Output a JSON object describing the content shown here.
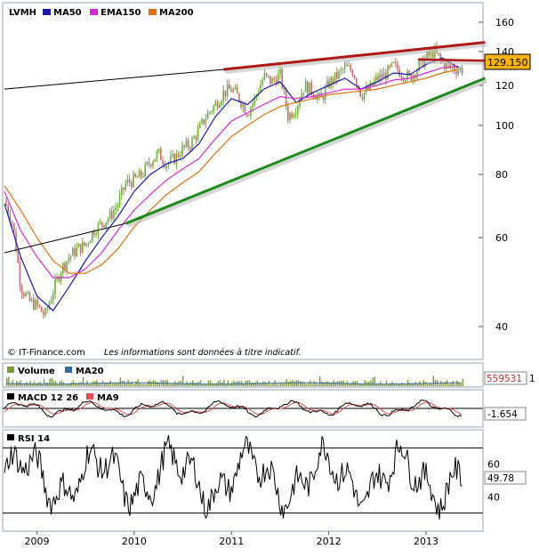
{
  "colors": {
    "frame": "#9aa6b8",
    "up": "#6fae3f",
    "down": "#c0706a",
    "ma50": "#1a1ab0",
    "ema150": "#d62ad0",
    "ma200": "#e07010",
    "trend_top": "#b01818",
    "trend_bottom": "#1e8a1e",
    "resistance": "#b01818",
    "price_badge": "#f4b400",
    "volume_bar": "#7a9a3a",
    "volume_ma": "#3a6aa0",
    "macd": "#000000",
    "macd_signal": "#e05050",
    "rsi": "#000000"
  },
  "legend": {
    "symbol": "LVMH",
    "ma50": "MA50",
    "ema150": "EMA150",
    "ma200": "MA200"
  },
  "credit": "© IT-Finance.com",
  "disclaimer": "Les informations sont données à titre indicatif.",
  "chart_data": [
    {
      "type": "line",
      "panel": "price",
      "scale": "log",
      "x_range": [
        "2008-09",
        "2013-05"
      ],
      "ylim": [
        35,
        170
      ],
      "yticks": [
        40,
        60,
        80,
        100,
        120,
        140,
        160
      ],
      "ytick_labels": [
        "40",
        "60",
        "80",
        "100",
        "120",
        "140",
        "160"
      ],
      "last_price": 129.15,
      "last_price_label": "129.150",
      "series": [
        {
          "name": "LVMH",
          "style": "candlestick",
          "x": [
            "2008-09",
            "2008-10",
            "2008-11",
            "2008-12",
            "2009-01",
            "2009-02",
            "2009-03",
            "2009-04",
            "2009-05",
            "2009-06",
            "2009-07",
            "2009-08",
            "2009-09",
            "2009-10",
            "2009-11",
            "2009-12",
            "2010-01",
            "2010-02",
            "2010-03",
            "2010-04",
            "2010-05",
            "2010-06",
            "2010-07",
            "2010-08",
            "2010-09",
            "2010-10",
            "2010-11",
            "2010-12",
            "2011-01",
            "2011-02",
            "2011-03",
            "2011-04",
            "2011-05",
            "2011-06",
            "2011-07",
            "2011-08",
            "2011-09",
            "2011-10",
            "2011-11",
            "2011-12",
            "2012-01",
            "2012-02",
            "2012-03",
            "2012-04",
            "2012-05",
            "2012-06",
            "2012-07",
            "2012-08",
            "2012-09",
            "2012-10",
            "2012-11",
            "2012-12",
            "2013-01",
            "2013-02",
            "2013-03",
            "2013-04",
            "2013-05"
          ],
          "values": [
            71,
            64,
            48,
            45,
            44,
            42,
            47,
            52,
            55,
            57,
            58,
            62,
            64,
            66,
            70,
            77,
            78,
            80,
            85,
            88,
            84,
            86,
            90,
            92,
            98,
            105,
            110,
            116,
            118,
            113,
            106,
            114,
            125,
            122,
            126,
            104,
            109,
            120,
            117,
            112,
            121,
            125,
            130,
            128,
            115,
            118,
            124,
            126,
            131,
            127,
            124,
            130,
            136,
            140,
            133,
            130,
            129.15
          ]
        },
        {
          "name": "MA50",
          "x": [
            "2008-09",
            "2008-11",
            "2009-01",
            "2009-03",
            "2009-05",
            "2009-07",
            "2009-09",
            "2009-11",
            "2010-01",
            "2010-03",
            "2010-05",
            "2010-07",
            "2010-09",
            "2010-11",
            "2011-01",
            "2011-03",
            "2011-05",
            "2011-07",
            "2011-09",
            "2011-11",
            "2012-01",
            "2012-03",
            "2012-05",
            "2012-07",
            "2012-09",
            "2012-11",
            "2013-01",
            "2013-03",
            "2013-05"
          ],
          "values": [
            70,
            55,
            46,
            43,
            48,
            54,
            60,
            66,
            74,
            80,
            84,
            86,
            92,
            104,
            113,
            110,
            118,
            122,
            111,
            116,
            120,
            124,
            118,
            122,
            127,
            126,
            132,
            136,
            130
          ]
        },
        {
          "name": "EMA150",
          "x": [
            "2008-09",
            "2008-11",
            "2009-01",
            "2009-03",
            "2009-05",
            "2009-07",
            "2009-09",
            "2009-11",
            "2010-01",
            "2010-03",
            "2010-05",
            "2010-07",
            "2010-09",
            "2010-11",
            "2011-01",
            "2011-03",
            "2011-05",
            "2011-07",
            "2011-09",
            "2011-11",
            "2012-01",
            "2012-03",
            "2012-05",
            "2012-07",
            "2012-09",
            "2012-11",
            "2013-01",
            "2013-03",
            "2013-05"
          ],
          "values": [
            74,
            62,
            55,
            50,
            50,
            52,
            56,
            62,
            68,
            73,
            78,
            82,
            86,
            94,
            102,
            106,
            110,
            114,
            113,
            114,
            116,
            118,
            118,
            120,
            123,
            124,
            127,
            130,
            131
          ]
        },
        {
          "name": "MA200",
          "x": [
            "2008-09",
            "2008-11",
            "2009-01",
            "2009-03",
            "2009-05",
            "2009-07",
            "2009-09",
            "2009-11",
            "2010-01",
            "2010-03",
            "2010-05",
            "2010-07",
            "2010-09",
            "2010-11",
            "2011-01",
            "2011-03",
            "2011-05",
            "2011-07",
            "2011-09",
            "2011-11",
            "2012-01",
            "2012-03",
            "2012-05",
            "2012-07",
            "2012-09",
            "2012-11",
            "2013-01",
            "2013-03",
            "2013-05"
          ],
          "values": [
            76,
            68,
            60,
            54,
            51,
            51,
            53,
            57,
            63,
            68,
            73,
            77,
            81,
            88,
            95,
            100,
            105,
            109,
            111,
            113,
            115,
            116,
            117,
            118,
            120,
            122,
            124,
            127,
            129
          ]
        }
      ],
      "annotations": [
        {
          "kind": "trendline",
          "role": "top",
          "x": [
            "2010-12",
            "2013-05"
          ],
          "y": [
            129,
            146
          ]
        },
        {
          "kind": "trendline",
          "role": "bottom",
          "x": [
            "2009-12",
            "2013-05"
          ],
          "y": [
            64,
            124
          ]
        },
        {
          "kind": "trendline",
          "role": "long",
          "x": [
            "2008-09",
            "2010-12"
          ],
          "y": [
            118,
            129
          ]
        },
        {
          "kind": "trendline",
          "role": "long-lower",
          "x": [
            "2008-09",
            "2009-12"
          ],
          "y": [
            56,
            64
          ]
        },
        {
          "kind": "resistance",
          "x": [
            "2012-12",
            "2013-05"
          ],
          "y": [
            135,
            134
          ]
        }
      ]
    },
    {
      "type": "bar",
      "panel": "volume",
      "legend": [
        "Volume",
        "MA20"
      ],
      "last_value_label": "559531",
      "right_label": "1"
    },
    {
      "type": "line",
      "panel": "macd",
      "legend": [
        "MACD 12 26",
        "MA9"
      ],
      "last_value_label": "-1.654"
    },
    {
      "type": "line",
      "panel": "rsi",
      "legend": [
        "RSI 14"
      ],
      "ylim": [
        20,
        80
      ],
      "ytick_labels": [
        "40",
        "60"
      ],
      "ytick_values": [
        40,
        60
      ],
      "band_levels": [
        30,
        70
      ],
      "last_value_label": "49.78"
    }
  ],
  "x_axis": {
    "labels": [
      "2009",
      "2010",
      "2011",
      "2012",
      "2013"
    ],
    "dates": [
      "2009-01",
      "2010-01",
      "2011-01",
      "2012-01",
      "2013-01"
    ]
  }
}
